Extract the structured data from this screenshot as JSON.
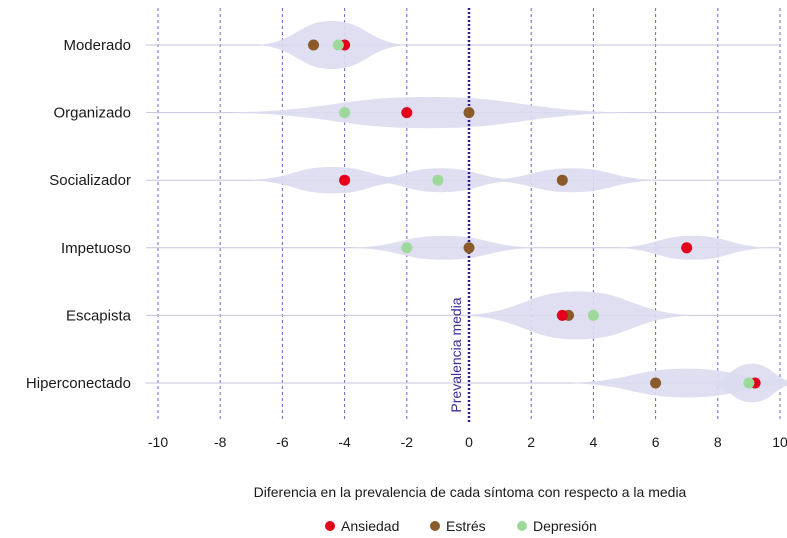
{
  "chart_data": {
    "type": "scatter",
    "categories": [
      "Moderado",
      "Organizado",
      "Socializador",
      "Impetuoso",
      "Escapista",
      "Hiperconectado"
    ],
    "xlabel": "Diferencia en la prevalencia de cada síntoma con respecto a la media",
    "xlim": [
      -10,
      10
    ],
    "xticks": [
      -10,
      -8,
      -6,
      -4,
      -2,
      0,
      2,
      4,
      6,
      8,
      10
    ],
    "xtick_labels": [
      "-10",
      "-8",
      "-6",
      "-4",
      "-2",
      "0",
      "2",
      "4",
      "6",
      "8",
      "10"
    ],
    "reference_line": {
      "x": 0,
      "label": "Prevalencia media"
    },
    "grid": true,
    "legend_position": "bottom",
    "series": [
      {
        "name": "Ansiedad",
        "color": "#e3001b",
        "values": [
          -4,
          -2,
          -4,
          7,
          3,
          9.2
        ]
      },
      {
        "name": "Estrés",
        "color": "#8b5a2b",
        "values": [
          -5,
          0,
          3,
          0,
          3.2,
          6
        ]
      },
      {
        "name": "Depresión",
        "color": "#9ed89a",
        "values": [
          -4.2,
          -4,
          -1,
          -2,
          4,
          9
        ]
      }
    ],
    "violin_color": "#dcdcef",
    "violins": [
      [
        {
          "center": -4.4,
          "half_width": 2.4,
          "max_height": 0.2
        }
      ],
      [
        {
          "center": -1.3,
          "half_width": 6.5,
          "max_height": 0.13
        }
      ],
      [
        {
          "center": -4.4,
          "half_width": 2.7,
          "max_height": 0.11
        },
        {
          "center": -0.9,
          "half_width": 2.6,
          "max_height": 0.1
        },
        {
          "center": 3.3,
          "half_width": 2.8,
          "max_height": 0.1
        }
      ],
      [
        {
          "center": -0.8,
          "half_width": 3.0,
          "max_height": 0.1
        },
        {
          "center": 7.2,
          "half_width": 2.5,
          "max_height": 0.1
        }
      ],
      [
        {
          "center": 3.5,
          "half_width": 3.7,
          "max_height": 0.2
        }
      ],
      [
        {
          "center": 7.0,
          "half_width": 3.8,
          "max_height": 0.12
        },
        {
          "center": 9.1,
          "half_width": 1.5,
          "max_height": 0.16
        }
      ]
    ]
  }
}
